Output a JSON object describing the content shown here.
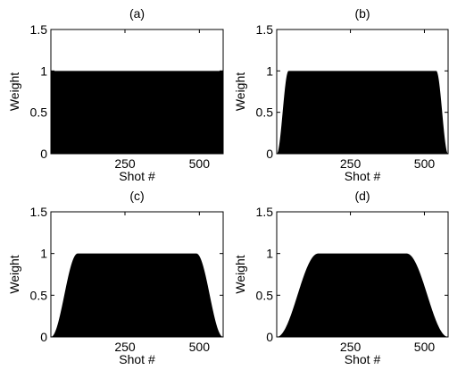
{
  "figure": {
    "background": "#ffffff",
    "fill_color": "#000000"
  },
  "chart_data": [
    {
      "type": "area",
      "title": "(a)",
      "xlabel": "Shot #",
      "ylabel": "Weight",
      "xlim": [
        1,
        580
      ],
      "ylim": [
        0,
        1.5
      ],
      "xticks": [
        250,
        500
      ],
      "yticks": [
        0,
        0.5,
        1,
        1.5
      ],
      "ytick_labels": [
        "0",
        "0.5",
        "1",
        "1.5"
      ],
      "xtick_labels": [
        "250",
        "500"
      ],
      "taper_shots": 0,
      "x": [
        1,
        580
      ],
      "y": [
        1,
        1
      ]
    },
    {
      "type": "area",
      "title": "(b)",
      "xlabel": "Shot #",
      "ylabel": "Weight",
      "xlim": [
        1,
        580
      ],
      "ylim": [
        0,
        1.5
      ],
      "xticks": [
        250,
        500
      ],
      "yticks": [
        0,
        0.5,
        1,
        1.5
      ],
      "ytick_labels": [
        "0",
        "0.5",
        "1",
        "1.5"
      ],
      "xtick_labels": [
        "250",
        "500"
      ],
      "taper_shots": 40,
      "x": [
        1,
        10,
        20,
        30,
        41,
        540,
        550,
        560,
        570,
        580
      ],
      "y": [
        0,
        0.15,
        0.5,
        0.85,
        1,
        1,
        0.85,
        0.5,
        0.15,
        0
      ]
    },
    {
      "type": "area",
      "title": "(c)",
      "xlabel": "Shot #",
      "ylabel": "Weight",
      "xlim": [
        1,
        580
      ],
      "ylim": [
        0,
        1.5
      ],
      "xticks": [
        250,
        500
      ],
      "yticks": [
        0,
        0.5,
        1,
        1.5
      ],
      "ytick_labels": [
        "0",
        "0.5",
        "1",
        "1.5"
      ],
      "xtick_labels": [
        "250",
        "500"
      ],
      "taper_shots": 90,
      "x": [
        1,
        20,
        45,
        70,
        91,
        490,
        511,
        536,
        561,
        580
      ],
      "y": [
        0,
        0.12,
        0.5,
        0.88,
        1,
        1,
        0.88,
        0.5,
        0.12,
        0
      ]
    },
    {
      "type": "area",
      "title": "(d)",
      "xlabel": "Shot #",
      "ylabel": "Weight",
      "xlim": [
        1,
        580
      ],
      "ylim": [
        0,
        1.5
      ],
      "xticks": [
        250,
        500
      ],
      "yticks": [
        0,
        0.5,
        1,
        1.5
      ],
      "ytick_labels": [
        "0",
        "0.5",
        "1",
        "1.5"
      ],
      "xtick_labels": [
        "250",
        "500"
      ],
      "taper_shots": 140,
      "x": [
        1,
        35,
        70,
        105,
        141,
        440,
        476,
        511,
        546,
        580
      ],
      "y": [
        0,
        0.15,
        0.5,
        0.85,
        1,
        1,
        0.85,
        0.5,
        0.15,
        0
      ]
    }
  ]
}
